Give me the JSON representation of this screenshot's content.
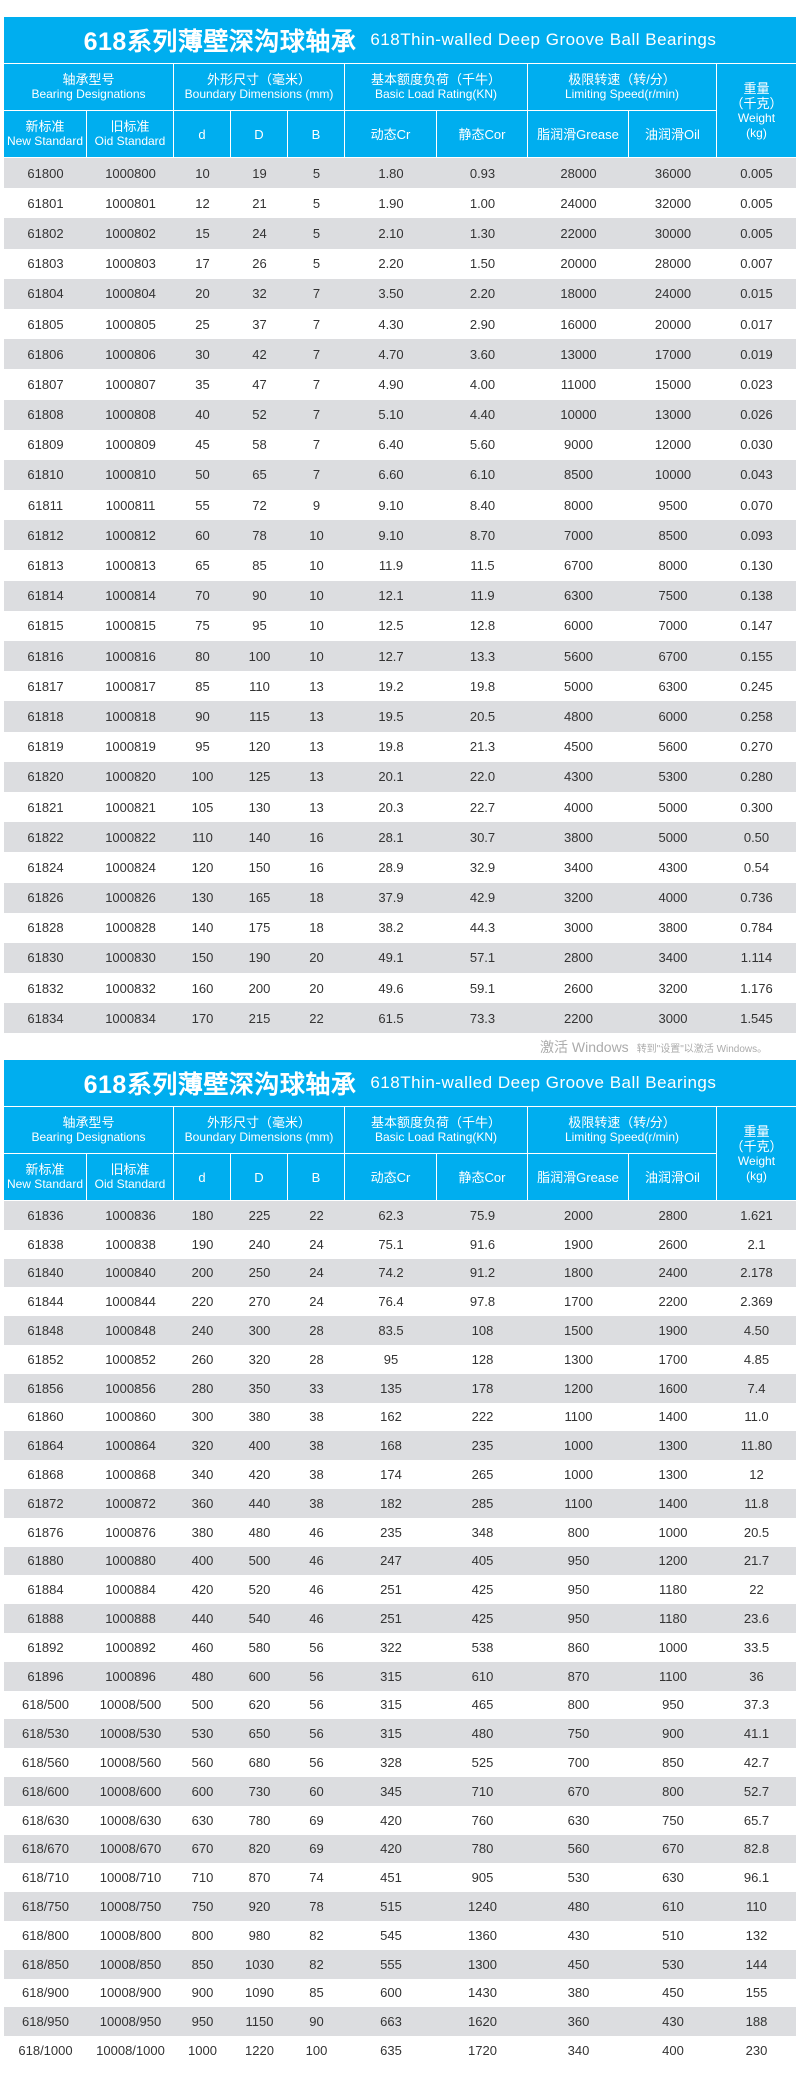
{
  "colors": {
    "header_bg": "#00aeef",
    "row_alt": "#dcdde0",
    "text": "#333333"
  },
  "header": {
    "title_cn": "618系列薄壁深沟球轴承",
    "title_en": "618Thin-walled Deep Groove Ball Bearings",
    "designation_cn": "轴承型号",
    "designation_en": "Bearing  Designations",
    "dimensions_cn": "外形尺寸（毫米）",
    "dimensions_en": "Boundary  Dimensions  (mm)",
    "load_cn": "基本额度负荷（千牛）",
    "load_en": "Basic Load Rating(KN)",
    "speed_cn": "极限转速（转/分）",
    "speed_en": "Limiting  Speed(r/min)",
    "weight_cn1": "重量",
    "weight_cn2": "（千克）",
    "weight_en1": "Weight",
    "weight_en2": "(kg)",
    "new_cn": "新标准",
    "new_en": "New Standard",
    "old_cn": "旧标准",
    "old_en": "Oid Standard",
    "d": "d",
    "D": "D",
    "B": "B",
    "cr": "动态Cr",
    "cor": "静态Cor",
    "grease": "脂润滑Grease",
    "oil": "油润滑Oil"
  },
  "table1": [
    [
      "61800",
      "1000800",
      "10",
      "19",
      "5",
      "1.80",
      "0.93",
      "28000",
      "36000",
      "0.005"
    ],
    [
      "61801",
      "1000801",
      "12",
      "21",
      "5",
      "1.90",
      "1.00",
      "24000",
      "32000",
      "0.005"
    ],
    [
      "61802",
      "1000802",
      "15",
      "24",
      "5",
      "2.10",
      "1.30",
      "22000",
      "30000",
      "0.005"
    ],
    [
      "61803",
      "1000803",
      "17",
      "26",
      "5",
      "2.20",
      "1.50",
      "20000",
      "28000",
      "0.007"
    ],
    [
      "61804",
      "1000804",
      "20",
      "32",
      "7",
      "3.50",
      "2.20",
      "18000",
      "24000",
      "0.015"
    ],
    [
      "61805",
      "1000805",
      "25",
      "37",
      "7",
      "4.30",
      "2.90",
      "16000",
      "20000",
      "0.017"
    ],
    [
      "61806",
      "1000806",
      "30",
      "42",
      "7",
      "4.70",
      "3.60",
      "13000",
      "17000",
      "0.019"
    ],
    [
      "61807",
      "1000807",
      "35",
      "47",
      "7",
      "4.90",
      "4.00",
      "11000",
      "15000",
      "0.023"
    ],
    [
      "61808",
      "1000808",
      "40",
      "52",
      "7",
      "5.10",
      "4.40",
      "10000",
      "13000",
      "0.026"
    ],
    [
      "61809",
      "1000809",
      "45",
      "58",
      "7",
      "6.40",
      "5.60",
      "9000",
      "12000",
      "0.030"
    ],
    [
      "61810",
      "1000810",
      "50",
      "65",
      "7",
      "6.60",
      "6.10",
      "8500",
      "10000",
      "0.043"
    ],
    [
      "61811",
      "1000811",
      "55",
      "72",
      "9",
      "9.10",
      "8.40",
      "8000",
      "9500",
      "0.070"
    ],
    [
      "61812",
      "1000812",
      "60",
      "78",
      "10",
      "9.10",
      "8.70",
      "7000",
      "8500",
      "0.093"
    ],
    [
      "61813",
      "1000813",
      "65",
      "85",
      "10",
      "11.9",
      "11.5",
      "6700",
      "8000",
      "0.130"
    ],
    [
      "61814",
      "1000814",
      "70",
      "90",
      "10",
      "12.1",
      "11.9",
      "6300",
      "7500",
      "0.138"
    ],
    [
      "61815",
      "1000815",
      "75",
      "95",
      "10",
      "12.5",
      "12.8",
      "6000",
      "7000",
      "0.147"
    ],
    [
      "61816",
      "1000816",
      "80",
      "100",
      "10",
      "12.7",
      "13.3",
      "5600",
      "6700",
      "0.155"
    ],
    [
      "61817",
      "1000817",
      "85",
      "110",
      "13",
      "19.2",
      "19.8",
      "5000",
      "6300",
      "0.245"
    ],
    [
      "61818",
      "1000818",
      "90",
      "115",
      "13",
      "19.5",
      "20.5",
      "4800",
      "6000",
      "0.258"
    ],
    [
      "61819",
      "1000819",
      "95",
      "120",
      "13",
      "19.8",
      "21.3",
      "4500",
      "5600",
      "0.270"
    ],
    [
      "61820",
      "1000820",
      "100",
      "125",
      "13",
      "20.1",
      "22.0",
      "4300",
      "5300",
      "0.280"
    ],
    [
      "61821",
      "1000821",
      "105",
      "130",
      "13",
      "20.3",
      "22.7",
      "4000",
      "5000",
      "0.300"
    ],
    [
      "61822",
      "1000822",
      "110",
      "140",
      "16",
      "28.1",
      "30.7",
      "3800",
      "5000",
      "0.50"
    ],
    [
      "61824",
      "1000824",
      "120",
      "150",
      "16",
      "28.9",
      "32.9",
      "3400",
      "4300",
      "0.54"
    ],
    [
      "61826",
      "1000826",
      "130",
      "165",
      "18",
      "37.9",
      "42.9",
      "3200",
      "4000",
      "0.736"
    ],
    [
      "61828",
      "1000828",
      "140",
      "175",
      "18",
      "38.2",
      "44.3",
      "3000",
      "3800",
      "0.784"
    ],
    [
      "61830",
      "1000830",
      "150",
      "190",
      "20",
      "49.1",
      "57.1",
      "2800",
      "3400",
      "1.114"
    ],
    [
      "61832",
      "1000832",
      "160",
      "200",
      "20",
      "49.6",
      "59.1",
      "2600",
      "3200",
      "1.176"
    ],
    [
      "61834",
      "1000834",
      "170",
      "215",
      "22",
      "61.5",
      "73.3",
      "2200",
      "3000",
      "1.545"
    ]
  ],
  "table2": [
    [
      "61836",
      "1000836",
      "180",
      "225",
      "22",
      "62.3",
      "75.9",
      "2000",
      "2800",
      "1.621"
    ],
    [
      "61838",
      "1000838",
      "190",
      "240",
      "24",
      "75.1",
      "91.6",
      "1900",
      "2600",
      "2.1"
    ],
    [
      "61840",
      "1000840",
      "200",
      "250",
      "24",
      "74.2",
      "91.2",
      "1800",
      "2400",
      "2.178"
    ],
    [
      "61844",
      "1000844",
      "220",
      "270",
      "24",
      "76.4",
      "97.8",
      "1700",
      "2200",
      "2.369"
    ],
    [
      "61848",
      "1000848",
      "240",
      "300",
      "28",
      "83.5",
      "108",
      "1500",
      "1900",
      "4.50"
    ],
    [
      "61852",
      "1000852",
      "260",
      "320",
      "28",
      "95",
      "128",
      "1300",
      "1700",
      "4.85"
    ],
    [
      "61856",
      "1000856",
      "280",
      "350",
      "33",
      "135",
      "178",
      "1200",
      "1600",
      "7.4"
    ],
    [
      "61860",
      "1000860",
      "300",
      "380",
      "38",
      "162",
      "222",
      "1100",
      "1400",
      "11.0"
    ],
    [
      "61864",
      "1000864",
      "320",
      "400",
      "38",
      "168",
      "235",
      "1000",
      "1300",
      "11.80"
    ],
    [
      "61868",
      "1000868",
      "340",
      "420",
      "38",
      "174",
      "265",
      "1000",
      "1300",
      "12"
    ],
    [
      "61872",
      "1000872",
      "360",
      "440",
      "38",
      "182",
      "285",
      "1100",
      "1400",
      "11.8"
    ],
    [
      "61876",
      "1000876",
      "380",
      "480",
      "46",
      "235",
      "348",
      "800",
      "1000",
      "20.5"
    ],
    [
      "61880",
      "1000880",
      "400",
      "500",
      "46",
      "247",
      "405",
      "950",
      "1200",
      "21.7"
    ],
    [
      "61884",
      "1000884",
      "420",
      "520",
      "46",
      "251",
      "425",
      "950",
      "1180",
      "22"
    ],
    [
      "61888",
      "1000888",
      "440",
      "540",
      "46",
      "251",
      "425",
      "950",
      "1180",
      "23.6"
    ],
    [
      "61892",
      "1000892",
      "460",
      "580",
      "56",
      "322",
      "538",
      "860",
      "1000",
      "33.5"
    ],
    [
      "61896",
      "1000896",
      "480",
      "600",
      "56",
      "315",
      "610",
      "870",
      "1100",
      "36"
    ],
    [
      "618/500",
      "10008/500",
      "500",
      "620",
      "56",
      "315",
      "465",
      "800",
      "950",
      "37.3"
    ],
    [
      "618/530",
      "10008/530",
      "530",
      "650",
      "56",
      "315",
      "480",
      "750",
      "900",
      "41.1"
    ],
    [
      "618/560",
      "10008/560",
      "560",
      "680",
      "56",
      "328",
      "525",
      "700",
      "850",
      "42.7"
    ],
    [
      "618/600",
      "10008/600",
      "600",
      "730",
      "60",
      "345",
      "710",
      "670",
      "800",
      "52.7"
    ],
    [
      "618/630",
      "10008/630",
      "630",
      "780",
      "69",
      "420",
      "760",
      "630",
      "750",
      "65.7"
    ],
    [
      "618/670",
      "10008/670",
      "670",
      "820",
      "69",
      "420",
      "780",
      "560",
      "670",
      "82.8"
    ],
    [
      "618/710",
      "10008/710",
      "710",
      "870",
      "74",
      "451",
      "905",
      "530",
      "630",
      "96.1"
    ],
    [
      "618/750",
      "10008/750",
      "750",
      "920",
      "78",
      "515",
      "1240",
      "480",
      "610",
      "110"
    ],
    [
      "618/800",
      "10008/800",
      "800",
      "980",
      "82",
      "545",
      "1360",
      "430",
      "510",
      "132"
    ],
    [
      "618/850",
      "10008/850",
      "850",
      "1030",
      "82",
      "555",
      "1300",
      "450",
      "530",
      "144"
    ],
    [
      "618/900",
      "10008/900",
      "900",
      "1090",
      "85",
      "600",
      "1430",
      "380",
      "450",
      "155"
    ],
    [
      "618/950",
      "10008/950",
      "950",
      "1150",
      "90",
      "663",
      "1620",
      "360",
      "430",
      "188"
    ],
    [
      "618/1000",
      "10008/1000",
      "1000",
      "1220",
      "100",
      "635",
      "1720",
      "340",
      "400",
      "230"
    ]
  ],
  "watermark": {
    "line1": "激活 Windows",
    "line2": "转到\"设置\"以激活 Windows。"
  }
}
